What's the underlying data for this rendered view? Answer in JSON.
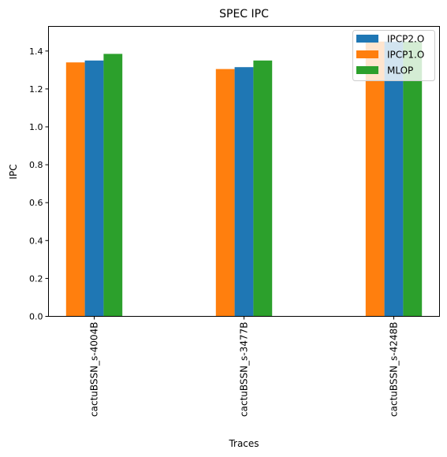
{
  "chart_data": {
    "type": "bar",
    "title": "SPEC IPC",
    "xlabel": "Traces",
    "ylabel": "IPC",
    "categories": [
      "cactuBSSN_s-4004B",
      "cactuBSSN_s-3477B",
      "cactuBSSN_s-4248B"
    ],
    "series": [
      {
        "name": "IPCP1.O",
        "color": "#ff7f0e",
        "values": [
          1.34,
          1.305,
          1.45
        ]
      },
      {
        "name": "IPCP2.O",
        "color": "#1f77b4",
        "values": [
          1.35,
          1.315,
          1.45
        ]
      },
      {
        "name": "MLOP",
        "color": "#2ca02c",
        "values": [
          1.385,
          1.35,
          1.45
        ]
      }
    ],
    "legend_order": [
      "IPCP2.O",
      "IPCP1.O",
      "MLOP"
    ],
    "legend_position": "top-right",
    "ylim": [
      0,
      1.53
    ],
    "yticks": [
      "0.0",
      "0.2",
      "0.4",
      "0.6",
      "0.8",
      "1.0",
      "1.2",
      "1.4"
    ],
    "grid": false
  }
}
